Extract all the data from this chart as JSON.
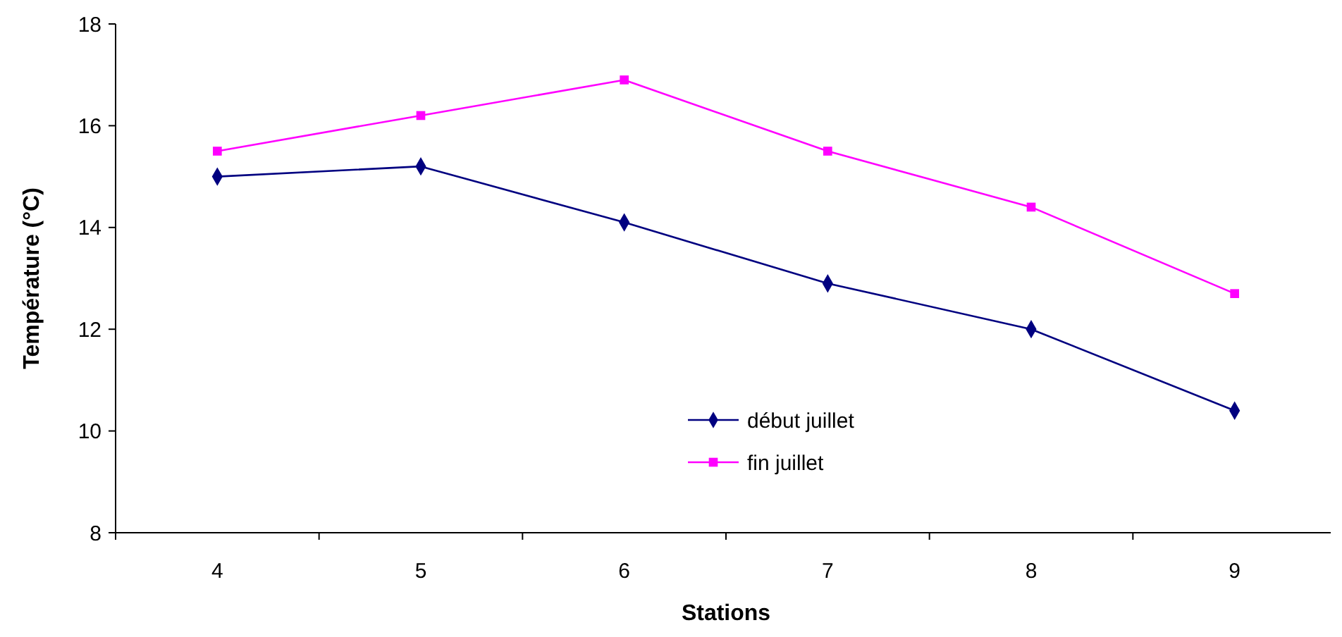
{
  "chart_data": {
    "type": "line",
    "xlabel": "Stations",
    "ylabel": "Température (°C)",
    "categories": [
      "4",
      "5",
      "6",
      "7",
      "8",
      "9"
    ],
    "ylim": [
      8,
      18
    ],
    "yticks": [
      8,
      10,
      12,
      14,
      16,
      18
    ],
    "grid": false,
    "legend": "bottom",
    "series": [
      {
        "name": "début juillet",
        "color": "#000080",
        "marker": "diamond",
        "values": [
          15.0,
          15.2,
          14.1,
          12.9,
          12.0,
          10.4
        ]
      },
      {
        "name": "fin juillet",
        "color": "#ff00ff",
        "marker": "square",
        "values": [
          15.5,
          16.2,
          16.9,
          15.5,
          14.4,
          12.7
        ]
      }
    ]
  }
}
